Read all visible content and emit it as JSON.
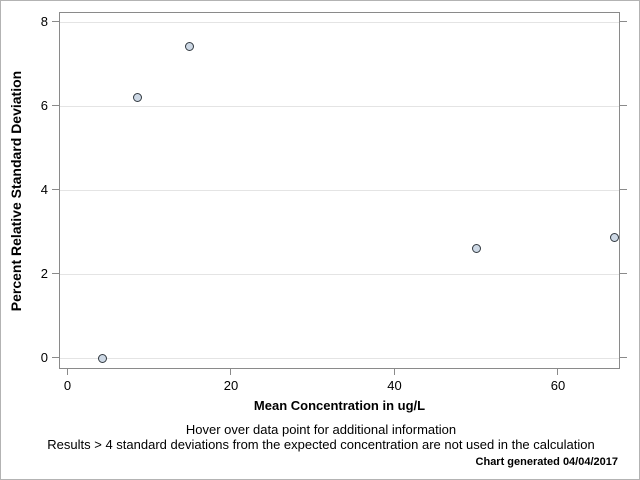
{
  "chart_data": {
    "type": "scatter",
    "title": "",
    "xlabel": "Mean Concentration in ug/L",
    "ylabel": "Percent Relative Standard Deviation",
    "points": [
      {
        "x": 4.1,
        "y": 0.02
      },
      {
        "x": 8.4,
        "y": 6.24
      },
      {
        "x": 14.8,
        "y": 7.45
      },
      {
        "x": 49.9,
        "y": 2.64
      },
      {
        "x": 66.8,
        "y": 2.9
      }
    ],
    "xticks": [
      0,
      20,
      40,
      60
    ],
    "yticks": [
      0,
      2,
      4,
      6,
      8
    ],
    "xlim": [
      -1.04,
      67.58
    ],
    "ylim": [
      -0.26,
      8.24
    ],
    "grid": "horizontal",
    "legend": "none",
    "marker": {
      "shape": "circle",
      "fill": "#cdd8e5",
      "stroke": "#333a41"
    }
  },
  "footer": {
    "line1": "Hover over data point for additional information",
    "line2": "Results > 4 standard deviations from the expected concentration are not used in the calculation",
    "generated": "Chart generated 04/04/2017"
  },
  "colors": {
    "frame": "#8a8a8a",
    "gridline": "#e4e4e4",
    "tick": "#8a8a8a",
    "outer_border": "#b3b3b3",
    "text": "#000000"
  }
}
